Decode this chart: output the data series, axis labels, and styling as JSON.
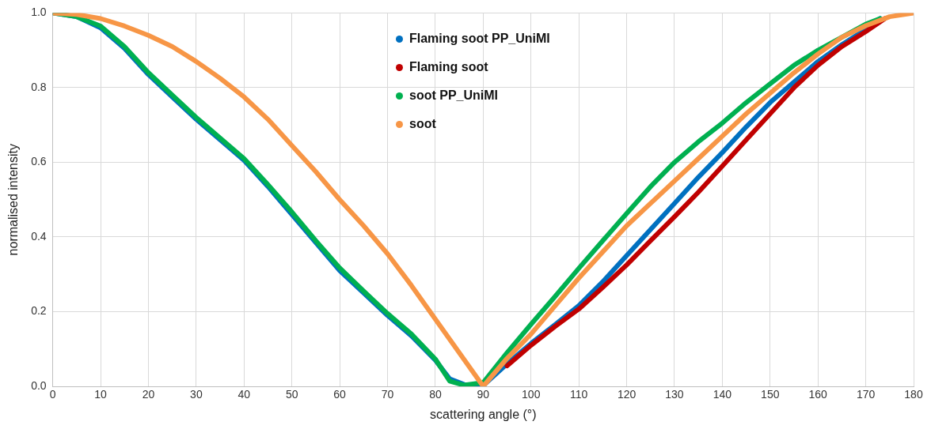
{
  "chart_data": {
    "type": "line",
    "xlabel": "scattering angle (°)",
    "ylabel": "normalised intensity",
    "xlim": [
      0,
      180
    ],
    "xticks": [
      0,
      10,
      20,
      30,
      40,
      50,
      60,
      70,
      80,
      90,
      100,
      110,
      120,
      130,
      140,
      150,
      160,
      170,
      180
    ],
    "ylim": [
      0,
      1
    ],
    "yticks": [
      {
        "value": 0,
        "label": "0.0"
      },
      {
        "value": 0.2,
        "label": "0.2"
      },
      {
        "value": 0.4,
        "label": "0.4"
      },
      {
        "value": 0.6,
        "label": "0.6"
      },
      {
        "value": 0.8,
        "label": "0.8"
      },
      {
        "value": 1,
        "label": "1.0"
      }
    ],
    "grid": true,
    "legend": "top",
    "series": [
      {
        "name": "Flaming soot PP_UniMI",
        "color": "#0070c0",
        "x": [
          0,
          5,
          10,
          15,
          20,
          25,
          30,
          35,
          40,
          45,
          50,
          55,
          60,
          65,
          70,
          75,
          80,
          83,
          86,
          90,
          95,
          100,
          105,
          110,
          115,
          120,
          125,
          130,
          135,
          140,
          145,
          150,
          155,
          160,
          165,
          170,
          173
        ],
        "values": [
          1,
          0.99,
          0.96,
          0.905,
          0.835,
          0.775,
          0.715,
          0.66,
          0.605,
          0.535,
          0.46,
          0.385,
          0.31,
          0.25,
          0.19,
          0.135,
          0.07,
          0.02,
          0.005,
          0.002,
          0.06,
          0.115,
          0.165,
          0.216,
          0.28,
          0.35,
          0.42,
          0.49,
          0.56,
          0.626,
          0.695,
          0.76,
          0.815,
          0.87,
          0.915,
          0.956,
          0.985
        ]
      },
      {
        "name": "Flaming soot",
        "color": "#c00000",
        "x": [
          95,
          100,
          105,
          110,
          115,
          120,
          125,
          130,
          135,
          140,
          145,
          150,
          155,
          160,
          165,
          170,
          174
        ],
        "values": [
          0.055,
          0.11,
          0.16,
          0.207,
          0.265,
          0.325,
          0.39,
          0.454,
          0.52,
          0.59,
          0.66,
          0.73,
          0.8,
          0.86,
          0.91,
          0.95,
          0.985
        ]
      },
      {
        "name": "soot PP_UniMI",
        "color": "#00b050",
        "x": [
          0,
          5,
          10,
          15,
          20,
          25,
          30,
          35,
          40,
          45,
          50,
          55,
          60,
          65,
          70,
          75,
          80,
          83,
          86,
          90,
          95,
          100,
          105,
          110,
          115,
          120,
          125,
          130,
          135,
          140,
          145,
          150,
          155,
          160,
          165,
          170,
          173
        ],
        "values": [
          1,
          0.99,
          0.965,
          0.91,
          0.84,
          0.78,
          0.72,
          0.665,
          0.61,
          0.54,
          0.467,
          0.39,
          0.317,
          0.255,
          0.195,
          0.14,
          0.073,
          0.014,
          0.003,
          0.01,
          0.09,
          0.166,
          0.24,
          0.316,
          0.39,
          0.463,
          0.535,
          0.6,
          0.655,
          0.705,
          0.76,
          0.81,
          0.86,
          0.9,
          0.935,
          0.97,
          0.985
        ]
      },
      {
        "name": "soot",
        "color": "#f79646",
        "x": [
          0,
          5,
          10,
          15,
          20,
          25,
          30,
          35,
          40,
          45,
          50,
          55,
          60,
          65,
          70,
          75,
          80,
          85,
          90,
          95,
          100,
          105,
          110,
          115,
          120,
          125,
          130,
          135,
          140,
          145,
          150,
          155,
          160,
          165,
          170,
          175,
          180
        ],
        "values": [
          1,
          0.996,
          0.985,
          0.965,
          0.94,
          0.91,
          0.87,
          0.825,
          0.775,
          0.715,
          0.645,
          0.575,
          0.5,
          0.43,
          0.355,
          0.27,
          0.18,
          0.09,
          0,
          0.075,
          0.14,
          0.215,
          0.29,
          0.36,
          0.43,
          0.49,
          0.55,
          0.61,
          0.67,
          0.73,
          0.785,
          0.84,
          0.89,
          0.935,
          0.966,
          0.99,
          1
        ]
      }
    ]
  }
}
